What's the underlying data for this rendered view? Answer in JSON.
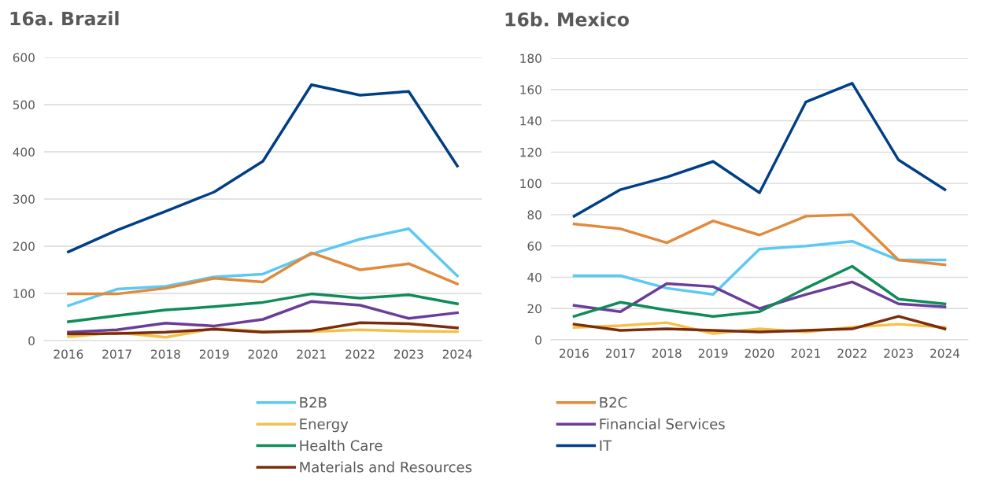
{
  "chart_data": [
    {
      "type": "line",
      "title": "16a. Brazil",
      "categories": [
        "2016",
        "2017",
        "2018",
        "2019",
        "2020",
        "2021",
        "2022",
        "2023",
        "2024"
      ],
      "ylim": [
        0,
        600
      ],
      "yticks": [
        0,
        100,
        200,
        300,
        400,
        500,
        600
      ],
      "grid": "y",
      "legend": "bottom",
      "marker": "none",
      "line_style": "solid",
      "series": [
        {
          "name": "B2B",
          "color": "#5bc8f5",
          "values": [
            74,
            109,
            115,
            135,
            141,
            183,
            215,
            237,
            137
          ]
        },
        {
          "name": "B2C",
          "color": "#e08a3c",
          "values": [
            99,
            99,
            111,
            132,
            124,
            186,
            150,
            163,
            120
          ]
        },
        {
          "name": "Energy",
          "color": "#f5c04a",
          "values": [
            8,
            17,
            7,
            26,
            19,
            19,
            23,
            20,
            19
          ]
        },
        {
          "name": "Financial Services",
          "color": "#6a3d9a",
          "values": [
            18,
            23,
            37,
            31,
            45,
            83,
            75,
            47,
            59
          ]
        },
        {
          "name": "Health Care",
          "color": "#0e8c5a",
          "values": [
            40,
            53,
            65,
            72,
            81,
            99,
            90,
            97,
            78
          ]
        },
        {
          "name": "IT",
          "color": "#003f87",
          "values": [
            188,
            234,
            274,
            315,
            380,
            542,
            520,
            528,
            370
          ]
        },
        {
          "name": "Materials and Resources",
          "color": "#7b2c0c",
          "values": [
            14,
            15,
            18,
            24,
            18,
            21,
            38,
            36,
            27
          ]
        }
      ]
    },
    {
      "type": "line",
      "title": "16b. Mexico",
      "categories": [
        "2016",
        "2017",
        "2018",
        "2019",
        "2020",
        "2021",
        "2022",
        "2023",
        "2024"
      ],
      "ylim": [
        0,
        180
      ],
      "yticks": [
        0,
        20,
        40,
        60,
        80,
        100,
        120,
        140,
        160,
        180
      ],
      "grid": "y",
      "legend": "bottom",
      "marker": "none",
      "line_style": "solid",
      "series": [
        {
          "name": "B2B",
          "color": "#5bc8f5",
          "values": [
            41,
            41,
            33,
            29,
            58,
            60,
            63,
            51,
            51
          ]
        },
        {
          "name": "B2C",
          "color": "#e08a3c",
          "values": [
            74,
            71,
            62,
            76,
            67,
            79,
            80,
            51,
            48
          ]
        },
        {
          "name": "Energy",
          "color": "#f5c04a",
          "values": [
            8,
            9,
            11,
            4,
            7,
            5,
            8,
            10,
            8
          ]
        },
        {
          "name": "Financial Services",
          "color": "#6a3d9a",
          "values": [
            22,
            18,
            36,
            34,
            20,
            29,
            37,
            23,
            21
          ]
        },
        {
          "name": "Health Care",
          "color": "#0e8c5a",
          "values": [
            15,
            24,
            19,
            15,
            18,
            33,
            47,
            26,
            23
          ]
        },
        {
          "name": "IT",
          "color": "#003f87",
          "values": [
            79,
            96,
            104,
            114,
            94,
            152,
            164,
            115,
            96
          ]
        },
        {
          "name": "Materials and Resources",
          "color": "#7b2c0c",
          "values": [
            10,
            6,
            7,
            6,
            5,
            6,
            7,
            15,
            7
          ]
        }
      ]
    }
  ]
}
